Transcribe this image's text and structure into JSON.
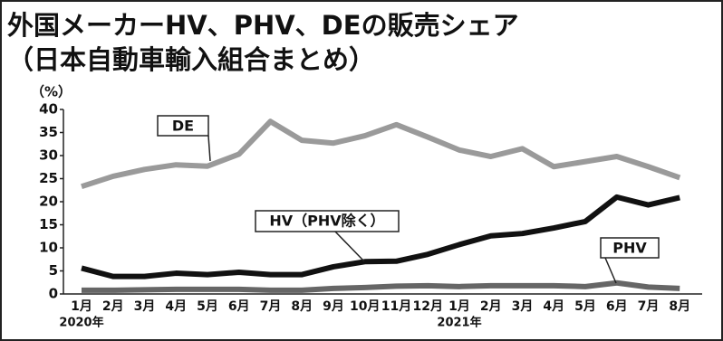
{
  "chart_data": {
    "type": "line",
    "title": "外国メーカーHV、PHV、DEの販売シェア",
    "subtitle": "（日本自動車輸入組合まとめ）",
    "y_unit": "（%）",
    "categories": [
      "1月",
      "2月",
      "3月",
      "4月",
      "5月",
      "6月",
      "7月",
      "8月",
      "9月",
      "10月",
      "11月",
      "12月",
      "1月",
      "2月",
      "3月",
      "4月",
      "5月",
      "6月",
      "7月",
      "8月"
    ],
    "x_groups": [
      {
        "label": "2020年",
        "start": 0
      },
      {
        "label": "2021年",
        "start": 12
      }
    ],
    "series": [
      {
        "name": "DE",
        "color": "#9a9a9a",
        "values": [
          23.3,
          25.5,
          27,
          28,
          27.7,
          30.3,
          37.4,
          33.3,
          32.7,
          34.3,
          36.7,
          34,
          31.2,
          29.8,
          31.5,
          27.6,
          28.7,
          29.8,
          27.6,
          25.2
        ]
      },
      {
        "name": "HV（PHV除く）",
        "color": "#111111",
        "values": [
          5.6,
          3.8,
          3.8,
          4.5,
          4.2,
          4.7,
          4.2,
          4.2,
          5.9,
          7,
          7.1,
          8.6,
          10.7,
          12.6,
          13.1,
          14.3,
          15.7,
          21,
          19.3,
          20.9
        ]
      },
      {
        "name": "PHV",
        "color": "#666666",
        "values": [
          0.8,
          0.8,
          0.9,
          1.0,
          1.0,
          1.0,
          0.8,
          0.8,
          1.2,
          1.4,
          1.7,
          1.8,
          1.6,
          1.8,
          1.8,
          1.8,
          1.6,
          2.4,
          1.5,
          1.2
        ]
      }
    ],
    "ylim": [
      0,
      40
    ],
    "yticks": [
      0,
      5,
      10,
      15,
      20,
      25,
      30,
      35,
      40
    ]
  }
}
